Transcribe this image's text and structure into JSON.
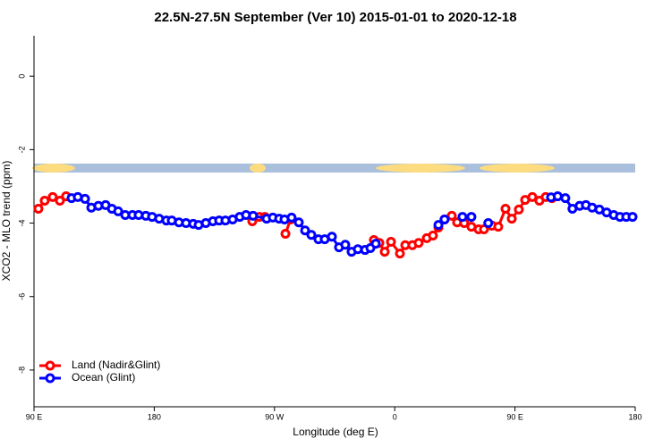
{
  "chart_data": {
    "type": "line",
    "title": "22.5N-27.5N September (Ver 10)   2015-01-01 to 2020-12-18",
    "x_label": "Longitude (deg E)",
    "y_label": "XCO2 - MLO trend (ppm)",
    "xlim": [
      90,
      540
    ],
    "ylim": [
      -9,
      1.1
    ],
    "xticks": [
      {
        "value": 90,
        "label": "90 E"
      },
      180,
      {
        "value": 270,
        "label": "90 W"
      },
      {
        "value": 360,
        "label": "0"
      },
      {
        "value": 450,
        "label": "90 E"
      },
      {
        "value": 540,
        "label": "180"
      }
    ],
    "yticks": [
      0,
      -2,
      -4,
      -6,
      -8
    ],
    "legend": "bottom-left",
    "series": [
      {
        "name": "Land (Nadir&Glint)",
        "color": "#ff0000",
        "x": [
          93.3,
          98,
          104,
          109.4,
          114,
          116,
          253.4,
          258.7,
          262.8,
          270,
          278.2,
          282,
          300,
          344.4,
          348.5,
          352.5,
          357.2,
          363.9,
          367.9,
          373.2,
          377.9,
          384,
          388.6,
          392.7,
          397.3,
          402.7,
          406.7,
          412,
          417.4,
          422.8,
          426.8,
          432.8,
          437.5,
          442.9,
          447.6,
          452.9,
          457.6,
          463,
          468.3,
          473,
          477.7
        ],
        "values": [
          -3.61,
          -3.39,
          -3.29,
          -3.39,
          -3.27,
          null,
          -3.95,
          -3.83,
          -3.83,
          null,
          -4.29,
          -3.9,
          null,
          -4.46,
          -4.54,
          -4.78,
          -4.51,
          -4.83,
          -4.6,
          -4.6,
          -4.54,
          -4.41,
          -4.34,
          -4.12,
          -3.9,
          -3.8,
          -3.98,
          -4,
          -4.1,
          -4.17,
          -4.17,
          -4.07,
          -4.1,
          -3.61,
          -3.88,
          -3.63,
          -3.37,
          -3.29,
          -3.39,
          -3.29,
          -3.32
        ]
      },
      {
        "name": "Ocean (Glint)",
        "color": "#0000ff",
        "x": [
          118.1,
          122.8,
          128.2,
          132.9,
          138.2,
          143.6,
          148.3,
          153,
          158.3,
          163.7,
          168.3,
          173.7,
          178.4,
          183.7,
          189.1,
          193.1,
          198.5,
          203.8,
          209.2,
          213.2,
          218.6,
          223.9,
          228.6,
          233.3,
          238.7,
          244,
          248.7,
          254,
          264.1,
          268.8,
          273.5,
          277.5,
          282.8,
          288.2,
          292.9,
          297.6,
          302.9,
          307.6,
          313,
          318.3,
          323,
          327.7,
          332.4,
          337.8,
          341.8,
          345.8,
          370,
          392.7,
          397.3,
          405,
          410.7,
          417.4,
          420,
          430,
          450,
          477,
          482,
          487.7,
          493,
          498.4,
          503.1,
          507.8,
          513.2,
          518.6,
          523.9,
          528.6,
          533.3,
          538
        ],
        "values": [
          -3.32,
          -3.29,
          -3.34,
          -3.58,
          -3.53,
          -3.51,
          -3.61,
          -3.68,
          -3.78,
          -3.78,
          -3.78,
          -3.8,
          -3.83,
          -3.88,
          -3.93,
          -3.93,
          -3.98,
          -4,
          -4.02,
          -4.05,
          -4,
          -3.95,
          -3.93,
          -3.93,
          -3.9,
          -3.83,
          -3.78,
          -3.8,
          -3.88,
          -3.85,
          -3.88,
          -3.9,
          -3.85,
          -3.98,
          -4.2,
          -4.32,
          -4.44,
          -4.44,
          -4.37,
          -4.66,
          -4.59,
          -4.78,
          -4.71,
          -4.73,
          -4.68,
          -4.56,
          null,
          -4.05,
          -3.9,
          null,
          -3.83,
          -3.83,
          null,
          -4,
          null,
          -3.3,
          -3.27,
          -3.32,
          -3.61,
          -3.53,
          -3.51,
          -3.58,
          -3.63,
          -3.71,
          -3.78,
          -3.83,
          -3.83,
          -3.83
        ]
      }
    ]
  }
}
